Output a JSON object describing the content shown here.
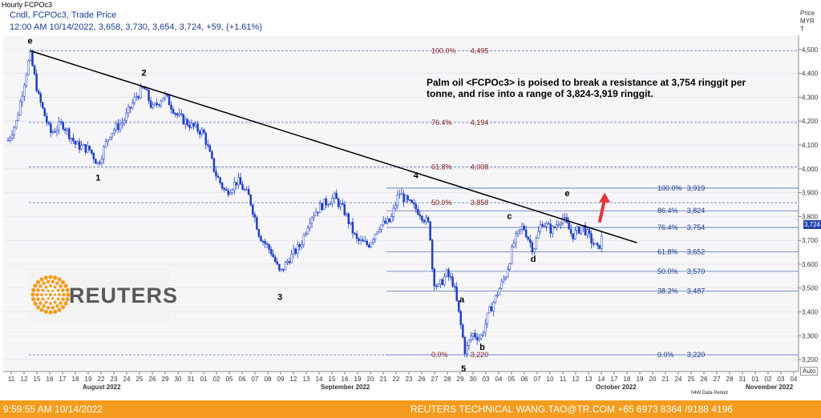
{
  "window_title": "Hourly FCPOc3",
  "info_line1": "Cndl, FCPOc3, Trade Price",
  "info_line2": "12:00 AM 10/14/2022, 3,658, 3,730, 3,654, 3,724, +59, (+1.61%)",
  "comment": "Palm oil <FCPOc3> is poised to break a resistance at 3,754 ringgit per tonne, and rise into a range of 3,824-3,919 ringgit.",
  "logo_text": "REUTERS",
  "price_axis_header": [
    "Price",
    "MYR",
    "T"
  ],
  "footer": {
    "left": "9:59:55 AM 10/14/2022",
    "right": "REUTERS TECHNICAL  WANG.TAO@TR.COM  +65 6973 8364 /9188 4196"
  },
  "auto_label": "Auto",
  "period_label": "04W Data Period",
  "colors": {
    "candle": "#1f3fc4",
    "fib_a": "#8b1a1a",
    "fib_b": "#1a3d8f",
    "trend": "#000000",
    "arrow": "#e8333a",
    "footer": "#f39c1d"
  },
  "chart_data": {
    "type": "candlestick",
    "ylim": [
      3150,
      4560
    ],
    "y_ticks": [
      3200,
      3300,
      3400,
      3500,
      3600,
      3700,
      3800,
      3900,
      4000,
      4100,
      4200,
      4300,
      4400,
      4500
    ],
    "y_tick_labels": [
      "3,200",
      "3,300",
      "3,400",
      "3,500",
      "3,600",
      "3,700",
      "3,800",
      "3,900",
      "4,000",
      "4,100",
      "4,200",
      "4,300",
      "4,400",
      "4,500"
    ],
    "x_ticks": [
      "11",
      "12",
      "15",
      "16",
      "17",
      "18",
      "19",
      "22",
      "23",
      "24",
      "25",
      "26",
      "29",
      "30",
      "31",
      "01",
      "02",
      "05",
      "06",
      "07",
      "08",
      "09",
      "12",
      "13",
      "14",
      "15",
      "16",
      "19",
      "20",
      "21",
      "22",
      "23",
      "26",
      "27",
      "28",
      "29",
      "30",
      "03",
      "04",
      "05",
      "06",
      "07",
      "10",
      "11",
      "12",
      "13",
      "14",
      "17",
      "18",
      "19",
      "20",
      "21",
      "24",
      "25",
      "26",
      "27",
      "28",
      "31",
      "01",
      "02",
      "03",
      "04"
    ],
    "months": [
      "August 2022",
      "September 2022",
      "October 2022",
      "November 2022"
    ],
    "current_price": "3,724",
    "fib_left": [
      {
        "pct": "100.0%",
        "value": "4,495",
        "price": 4495
      },
      {
        "pct": "76.4%",
        "value": "4,194",
        "price": 4194
      },
      {
        "pct": "61.8%",
        "value": "4,008",
        "price": 4008
      },
      {
        "pct": "50.0%",
        "value": "3,858",
        "price": 3858
      },
      {
        "pct": "0.0%",
        "value": "3,220",
        "price": 3220
      }
    ],
    "fib_right": [
      {
        "pct": "100.0%",
        "value": "3,919",
        "price": 3919
      },
      {
        "pct": "86.4%",
        "value": "3,824",
        "price": 3824
      },
      {
        "pct": "76.4%",
        "value": "3,754",
        "price": 3754
      },
      {
        "pct": "61.8%",
        "value": "3,652",
        "price": 3652
      },
      {
        "pct": "50.0%",
        "value": "3,570",
        "price": 3570
      },
      {
        "pct": "38.2%",
        "value": "3,487",
        "price": 3487
      },
      {
        "pct": "0.0%",
        "value": "3,220",
        "price": 3220
      }
    ],
    "wave_labels": [
      {
        "text": "e",
        "day": 1.3,
        "price": 4525
      },
      {
        "text": "2",
        "day": 8.0,
        "price": 4390
      },
      {
        "text": "1",
        "day": 5.3,
        "price": 3950
      },
      {
        "text": "3",
        "day": 16.0,
        "price": 3450
      },
      {
        "text": "4",
        "day": 24.0,
        "price": 3960
      },
      {
        "text": "5",
        "day": 26.8,
        "price": 3150
      },
      {
        "text": "a",
        "day": 26.7,
        "price": 3440
      },
      {
        "text": "b",
        "day": 27.9,
        "price": 3240
      },
      {
        "text": "c",
        "day": 29.5,
        "price": 3790
      },
      {
        "text": "d",
        "day": 30.9,
        "price": 3610
      },
      {
        "text": "e",
        "day": 32.9,
        "price": 3885
      }
    ],
    "trendline": [
      {
        "day": 1.3,
        "price": 4495
      },
      {
        "day": 37.0,
        "price": 3690
      }
    ],
    "arrow": [
      {
        "day": 34.8,
        "price": 3775
      },
      {
        "day": 35.1,
        "price": 3900
      }
    ],
    "series": [
      {
        "day": 0.0,
        "price": 4120
      },
      {
        "day": 0.5,
        "price": 4200
      },
      {
        "day": 1.0,
        "price": 4380
      },
      {
        "day": 1.3,
        "price": 4480
      },
      {
        "day": 1.8,
        "price": 4300
      },
      {
        "day": 2.5,
        "price": 4150
      },
      {
        "day": 3.2,
        "price": 4190
      },
      {
        "day": 4.0,
        "price": 4100
      },
      {
        "day": 4.8,
        "price": 4080
      },
      {
        "day": 5.3,
        "price": 4020
      },
      {
        "day": 6.0,
        "price": 4150
      },
      {
        "day": 6.8,
        "price": 4200
      },
      {
        "day": 7.5,
        "price": 4300
      },
      {
        "day": 8.0,
        "price": 4340
      },
      {
        "day": 8.5,
        "price": 4250
      },
      {
        "day": 9.2,
        "price": 4310
      },
      {
        "day": 10.0,
        "price": 4220
      },
      {
        "day": 10.8,
        "price": 4180
      },
      {
        "day": 11.5,
        "price": 4150
      },
      {
        "day": 12.2,
        "price": 3980
      },
      {
        "day": 12.8,
        "price": 3900
      },
      {
        "day": 13.5,
        "price": 3950
      },
      {
        "day": 14.2,
        "price": 3880
      },
      {
        "day": 14.8,
        "price": 3720
      },
      {
        "day": 15.5,
        "price": 3650
      },
      {
        "day": 16.0,
        "price": 3560
      },
      {
        "day": 16.5,
        "price": 3620
      },
      {
        "day": 17.2,
        "price": 3680
      },
      {
        "day": 17.8,
        "price": 3800
      },
      {
        "day": 18.5,
        "price": 3850
      },
      {
        "day": 19.2,
        "price": 3880
      },
      {
        "day": 19.8,
        "price": 3820
      },
      {
        "day": 20.5,
        "price": 3700
      },
      {
        "day": 21.2,
        "price": 3680
      },
      {
        "day": 21.8,
        "price": 3760
      },
      {
        "day": 22.5,
        "price": 3780
      },
      {
        "day": 23.0,
        "price": 3900
      },
      {
        "day": 23.5,
        "price": 3860
      },
      {
        "day": 24.2,
        "price": 3820
      },
      {
        "day": 24.8,
        "price": 3760
      },
      {
        "day": 25.0,
        "price": 3540
      },
      {
        "day": 25.3,
        "price": 3500
      },
      {
        "day": 25.8,
        "price": 3560
      },
      {
        "day": 26.2,
        "price": 3520
      },
      {
        "day": 26.6,
        "price": 3360
      },
      {
        "day": 26.9,
        "price": 3230
      },
      {
        "day": 27.3,
        "price": 3310
      },
      {
        "day": 27.8,
        "price": 3290
      },
      {
        "day": 28.3,
        "price": 3400
      },
      {
        "day": 28.8,
        "price": 3480
      },
      {
        "day": 29.3,
        "price": 3560
      },
      {
        "day": 29.8,
        "price": 3700
      },
      {
        "day": 30.3,
        "price": 3760
      },
      {
        "day": 30.9,
        "price": 3660
      },
      {
        "day": 31.4,
        "price": 3780
      },
      {
        "day": 32.0,
        "price": 3740
      },
      {
        "day": 32.6,
        "price": 3800
      },
      {
        "day": 33.2,
        "price": 3720
      },
      {
        "day": 33.8,
        "price": 3760
      },
      {
        "day": 34.3,
        "price": 3700
      },
      {
        "day": 34.7,
        "price": 3660
      },
      {
        "day": 35.0,
        "price": 3724
      }
    ]
  }
}
